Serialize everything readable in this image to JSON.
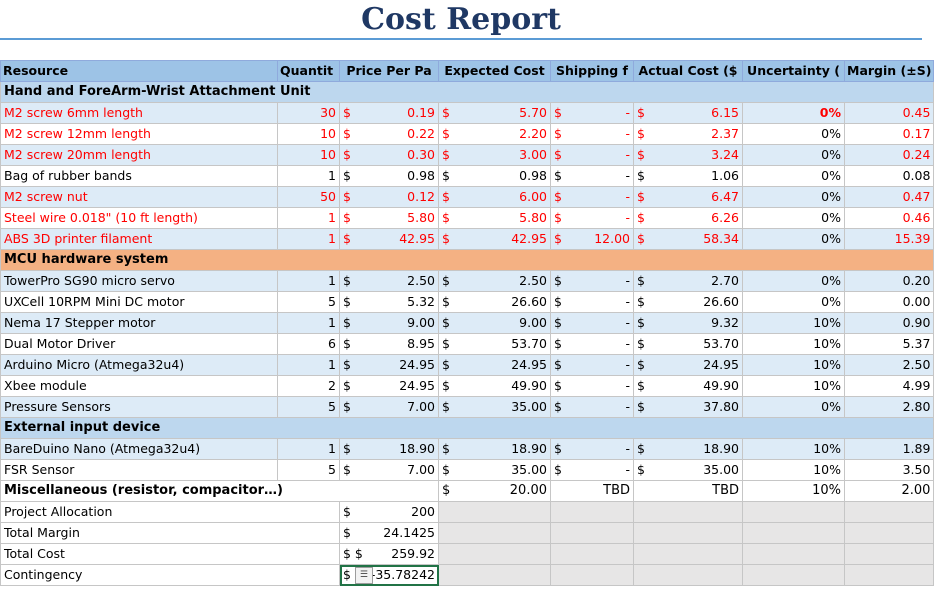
{
  "title": "Cost Report",
  "columns": [
    "Resource",
    "Quantit",
    "Price Per Pa",
    "Expected Cost",
    "Shipping f",
    "Actual Cost ($",
    "Uncertainty (",
    "Margin (±S)"
  ],
  "sections": [
    {
      "label": "Hand and ForeArm-Wrist Attachment Unit",
      "style": "blue",
      "rows": [
        {
          "name": "M2 screw 6mm length",
          "qty": "30",
          "price": "0.19",
          "expected": "5.70",
          "shipping": "-",
          "actual": "6.15",
          "uncertainty": "0%",
          "margin": "0.45",
          "red": true,
          "uncRed": true
        },
        {
          "name": "M2 screw 12mm length",
          "qty": "10",
          "price": "0.22",
          "expected": "2.20",
          "shipping": "-",
          "actual": "2.37",
          "uncertainty": "0%",
          "margin": "0.17",
          "red": true
        },
        {
          "name": "M2 screw 20mm length",
          "qty": "10",
          "price": "0.30",
          "expected": "3.00",
          "shipping": "-",
          "actual": "3.24",
          "uncertainty": "0%",
          "margin": "0.24",
          "red": true
        },
        {
          "name": "Bag of rubber bands",
          "qty": "1",
          "price": "0.98",
          "expected": "0.98",
          "shipping": "-",
          "actual": "1.06",
          "uncertainty": "0%",
          "margin": "0.08",
          "red": false
        },
        {
          "name": "M2 screw nut",
          "qty": "50",
          "price": "0.12",
          "expected": "6.00",
          "shipping": "-",
          "actual": "6.47",
          "uncertainty": "0%",
          "margin": "0.47",
          "red": true
        },
        {
          "name": "Steel wire 0.018\" (10 ft length)",
          "qty": "1",
          "price": "5.80",
          "expected": "5.80",
          "shipping": "-",
          "actual": "6.26",
          "uncertainty": "0%",
          "margin": "0.46",
          "red": true
        },
        {
          "name": "ABS 3D printer filament",
          "qty": "1",
          "price": "42.95",
          "expected": "42.95",
          "shipping": "12.00",
          "actual": "58.34",
          "uncertainty": "0%",
          "margin": "15.39",
          "red": true
        }
      ]
    },
    {
      "label": "MCU hardware system",
      "style": "orange",
      "rows": [
        {
          "name": "TowerPro SG90 micro servo",
          "qty": "1",
          "price": "2.50",
          "expected": "2.50",
          "shipping": "-",
          "actual": "2.70",
          "uncertainty": "0%",
          "margin": "0.20",
          "red": false
        },
        {
          "name": "UXCell 10RPM Mini DC motor",
          "qty": "5",
          "price": "5.32",
          "expected": "26.60",
          "shipping": "-",
          "actual": "26.60",
          "uncertainty": "0%",
          "margin": "0.00",
          "red": false
        },
        {
          "name": "Nema 17 Stepper motor",
          "qty": "1",
          "price": "9.00",
          "expected": "9.00",
          "shipping": "-",
          "actual": "9.32",
          "uncertainty": "10%",
          "margin": "0.90",
          "red": false
        },
        {
          "name": "Dual Motor Driver",
          "qty": "6",
          "price": "8.95",
          "expected": "53.70",
          "shipping": "-",
          "actual": "53.70",
          "uncertainty": "10%",
          "margin": "5.37",
          "red": false
        },
        {
          "name": "Arduino Micro (Atmega32u4)",
          "qty": "1",
          "price": "24.95",
          "expected": "24.95",
          "shipping": "-",
          "actual": "24.95",
          "uncertainty": "10%",
          "margin": "2.50",
          "red": false
        },
        {
          "name": "Xbee module",
          "qty": "2",
          "price": "24.95",
          "expected": "49.90",
          "shipping": "-",
          "actual": "49.90",
          "uncertainty": "10%",
          "margin": "4.99",
          "red": false
        },
        {
          "name": "Pressure Sensors",
          "qty": "5",
          "price": "7.00",
          "expected": "35.00",
          "shipping": "-",
          "actual": "37.80",
          "uncertainty": "0%",
          "margin": "2.80",
          "red": false
        }
      ]
    },
    {
      "label": "External input device",
      "style": "blue",
      "rows": [
        {
          "name": "BareDuino Nano (Atmega32u4)",
          "qty": "1",
          "price": "18.90",
          "expected": "18.90",
          "shipping": "-",
          "actual": "18.90",
          "uncertainty": "10%",
          "margin": "1.89",
          "red": false
        },
        {
          "name": "FSR Sensor",
          "qty": "5",
          "price": "7.00",
          "expected": "35.00",
          "shipping": "-",
          "actual": "35.00",
          "uncertainty": "10%",
          "margin": "3.50",
          "red": false
        }
      ]
    }
  ],
  "misc": {
    "label": "Miscellaneous (resistor, compacitor…)",
    "expected": "20.00",
    "shipping": "TBD",
    "actual": "TBD",
    "uncertainty": "10%",
    "margin": "2.00"
  },
  "summary": [
    {
      "label": "Project Allocation",
      "value": "200",
      "dollars": "$"
    },
    {
      "label": "Total Margin",
      "value": "24.1425",
      "dollars": "$"
    },
    {
      "label": "Total Cost",
      "value": "259.92",
      "dollars": "$ $"
    },
    {
      "label": "Contingency",
      "value": "-35.78242",
      "dollars": "$"
    }
  ],
  "currency": "$",
  "colors": {
    "header": "#9dc3e6",
    "section_blue": "#bdd7ee",
    "section_orange": "#f4b183",
    "row_band": "#ddebf7",
    "title": "#1f3864",
    "negative": "#ff0000"
  }
}
